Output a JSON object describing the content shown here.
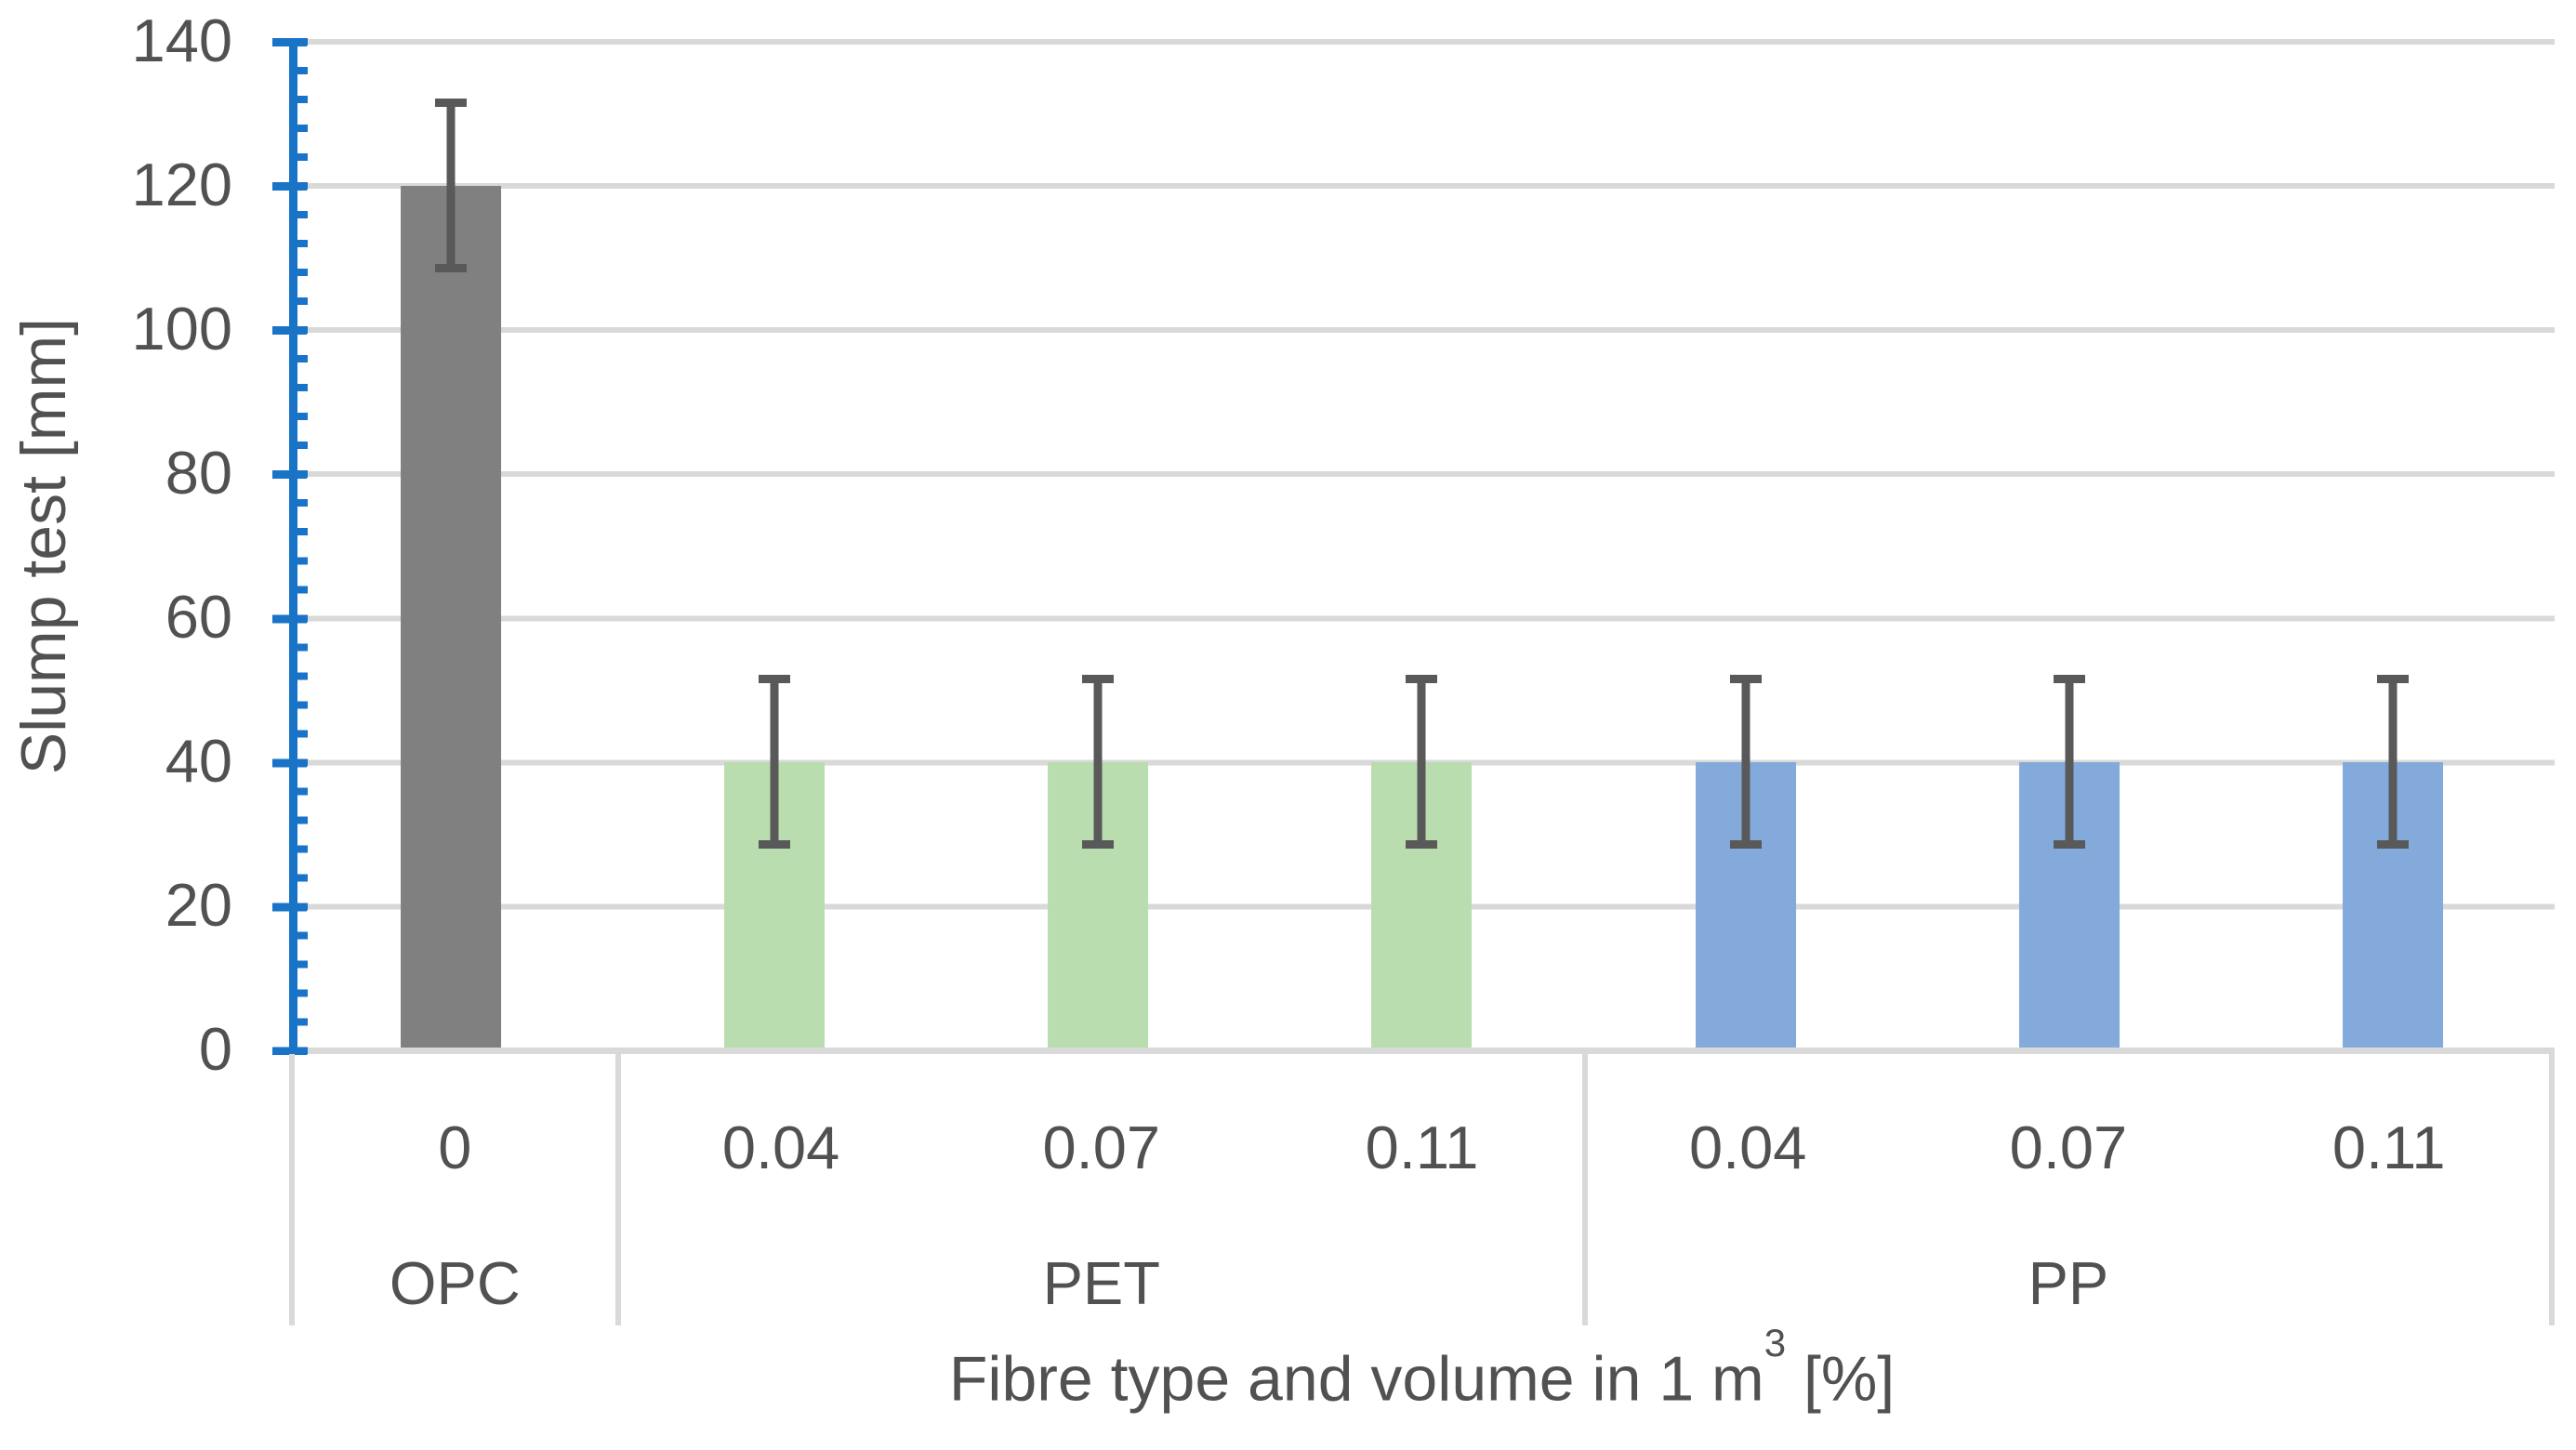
{
  "y_axis": {
    "title": "Slump test [mm]"
  },
  "x_axis": {
    "title_prefix": "Fibre type and volume in 1 m",
    "title_superscript": "3",
    "title_suffix": " [%]"
  },
  "colors": {
    "bar_opc": "#808080",
    "bar_pet": "#BADDB0",
    "bar_pp": "#84AADC",
    "error_bar": "#595959",
    "axis_line_blue": "#1973C6",
    "gridline": "#D9D9D9",
    "label_text": "#515151"
  },
  "chart_data": {
    "type": "bar",
    "title": "",
    "xlabel": "Fibre type and volume in 1 m3 [%]",
    "ylabel": "Slump test [mm]",
    "ylim": [
      0,
      140
    ],
    "yticks": [
      0,
      20,
      40,
      60,
      80,
      100,
      120,
      140
    ],
    "y_major_unit": 20,
    "y_minor_unit": 4,
    "grid": true,
    "legend": false,
    "groups": [
      {
        "label": "OPC",
        "color": "#808080",
        "categories": [
          "0"
        ],
        "values": [
          120
        ]
      },
      {
        "label": "PET",
        "color": "#BADDB0",
        "categories": [
          "0.04",
          "0.07",
          "0.11"
        ],
        "values": [
          40,
          40,
          40
        ]
      },
      {
        "label": "PP",
        "color": "#84AADC",
        "categories": [
          "0.04",
          "0.07",
          "0.11"
        ],
        "values": [
          40,
          40,
          40
        ]
      }
    ],
    "error_bar": {
      "plus": 11.5,
      "minus": 11.5,
      "color": "#595959"
    }
  }
}
